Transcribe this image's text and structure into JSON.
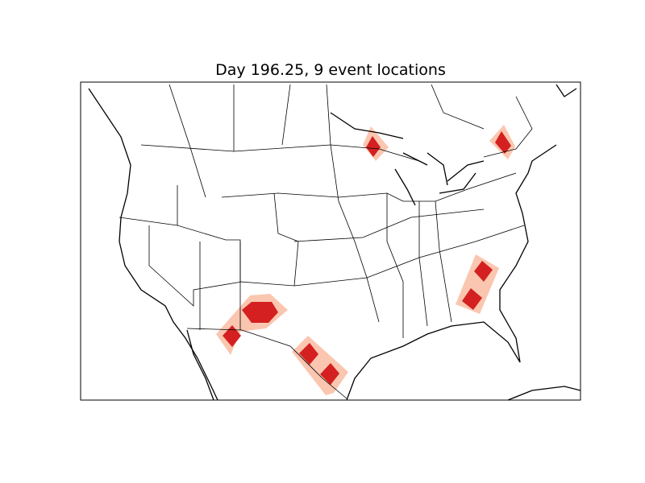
{
  "title": "Day 196.25, 9 event locations",
  "map": {
    "projection": "basemap-lcc",
    "region": "North America (contiguous US)",
    "colors": {
      "outer": "#fbc6b0",
      "inner": "#d42020",
      "lines": "#000000"
    }
  }
}
